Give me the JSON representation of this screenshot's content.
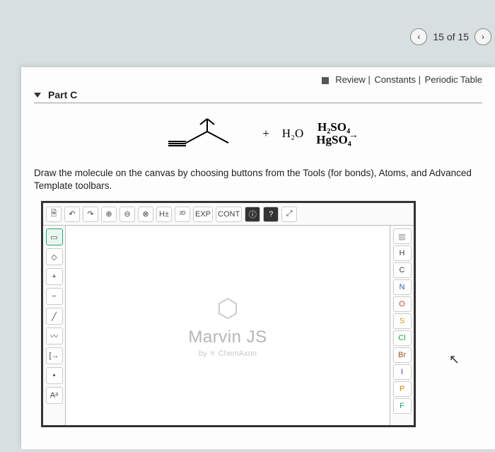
{
  "nav": {
    "prev_icon": "‹",
    "counter": "15 of 15",
    "next_icon": "›"
  },
  "links": {
    "review": "Review",
    "constants": "Constants",
    "periodic": "Periodic Table"
  },
  "part": {
    "label": "Part C"
  },
  "reaction": {
    "plus": "+",
    "h2o": "H₂O",
    "top_reagent": "H₂SO₄",
    "bot_reagent": "HgSO₄"
  },
  "instruction": "Draw the molecule on the canvas by choosing buttons from the Tools (for bonds), Atoms, and Advanced Template toolbars.",
  "toolbar_top": [
    "🗎",
    "↶",
    "↷",
    "⊕",
    "⊖",
    "⊗",
    "H±",
    "²ᴰ",
    "EXP",
    "CONT",
    "ⓘ",
    "?",
    "⤢"
  ],
  "toolbar_left": [
    "▭",
    "◇",
    "+",
    "−",
    "╱",
    "〰",
    "[→",
    "•",
    "Aᵃ"
  ],
  "toolbar_right": [
    {
      "label": "▥",
      "color": "#888"
    },
    {
      "label": "H",
      "color": "#444"
    },
    {
      "label": "C",
      "color": "#444"
    },
    {
      "label": "N",
      "color": "#3060c0"
    },
    {
      "label": "O",
      "color": "#d04020"
    },
    {
      "label": "S",
      "color": "#c0a020"
    },
    {
      "label": "Cl",
      "color": "#20a040"
    },
    {
      "label": "Br",
      "color": "#a05020"
    },
    {
      "label": "I",
      "color": "#7030a0"
    },
    {
      "label": "P",
      "color": "#d08000"
    },
    {
      "label": "F",
      "color": "#20a080"
    }
  ],
  "marvin": {
    "brand": "Marvin JS",
    "sub": "by ⚛ ChemAxon"
  }
}
